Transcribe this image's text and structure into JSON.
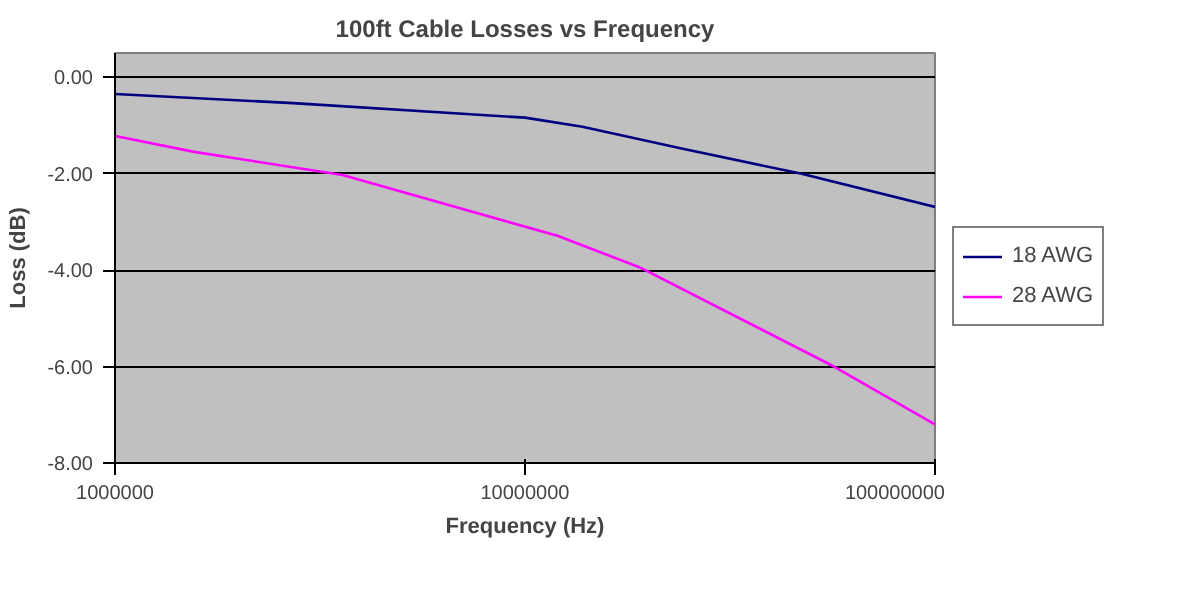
{
  "chart_data": {
    "type": "line",
    "title": "100ft Cable Losses vs Frequency",
    "xlabel": "Frequency (Hz)",
    "ylabel": "Loss (dB)",
    "log": "x",
    "xlim": [
      1000000,
      100000000
    ],
    "xticks": [
      1000000,
      10000000,
      100000000
    ],
    "ylim": [
      -8,
      0.5
    ],
    "yticks": [
      {
        "value": 0,
        "label": "0.00"
      },
      {
        "value": -2,
        "label": "-2.00"
      },
      {
        "value": -4,
        "label": "-4.00"
      },
      {
        "value": -6,
        "label": "-6.00"
      },
      {
        "value": -8,
        "label": "-8.00"
      }
    ],
    "grid": "y",
    "legend": "right",
    "marker": "none",
    "line_style": "solid",
    "series": [
      {
        "name": "18 AWG",
        "color": "#000080",
        "x": [
          1000000,
          2720000,
          10000000,
          13800000,
          24100000,
          47000000,
          100000000
        ],
        "values": [
          -0.35,
          -0.54,
          -0.84,
          -1.03,
          -1.48,
          -2.0,
          -2.69
        ]
      },
      {
        "name": "28 AWG",
        "color": "#ff00ff",
        "x": [
          1000000,
          1560000,
          3590000,
          12000000,
          19000000,
          56700000,
          100000000
        ],
        "values": [
          -1.22,
          -1.55,
          -2.03,
          -3.29,
          -3.94,
          -6.0,
          -7.2
        ]
      }
    ]
  }
}
